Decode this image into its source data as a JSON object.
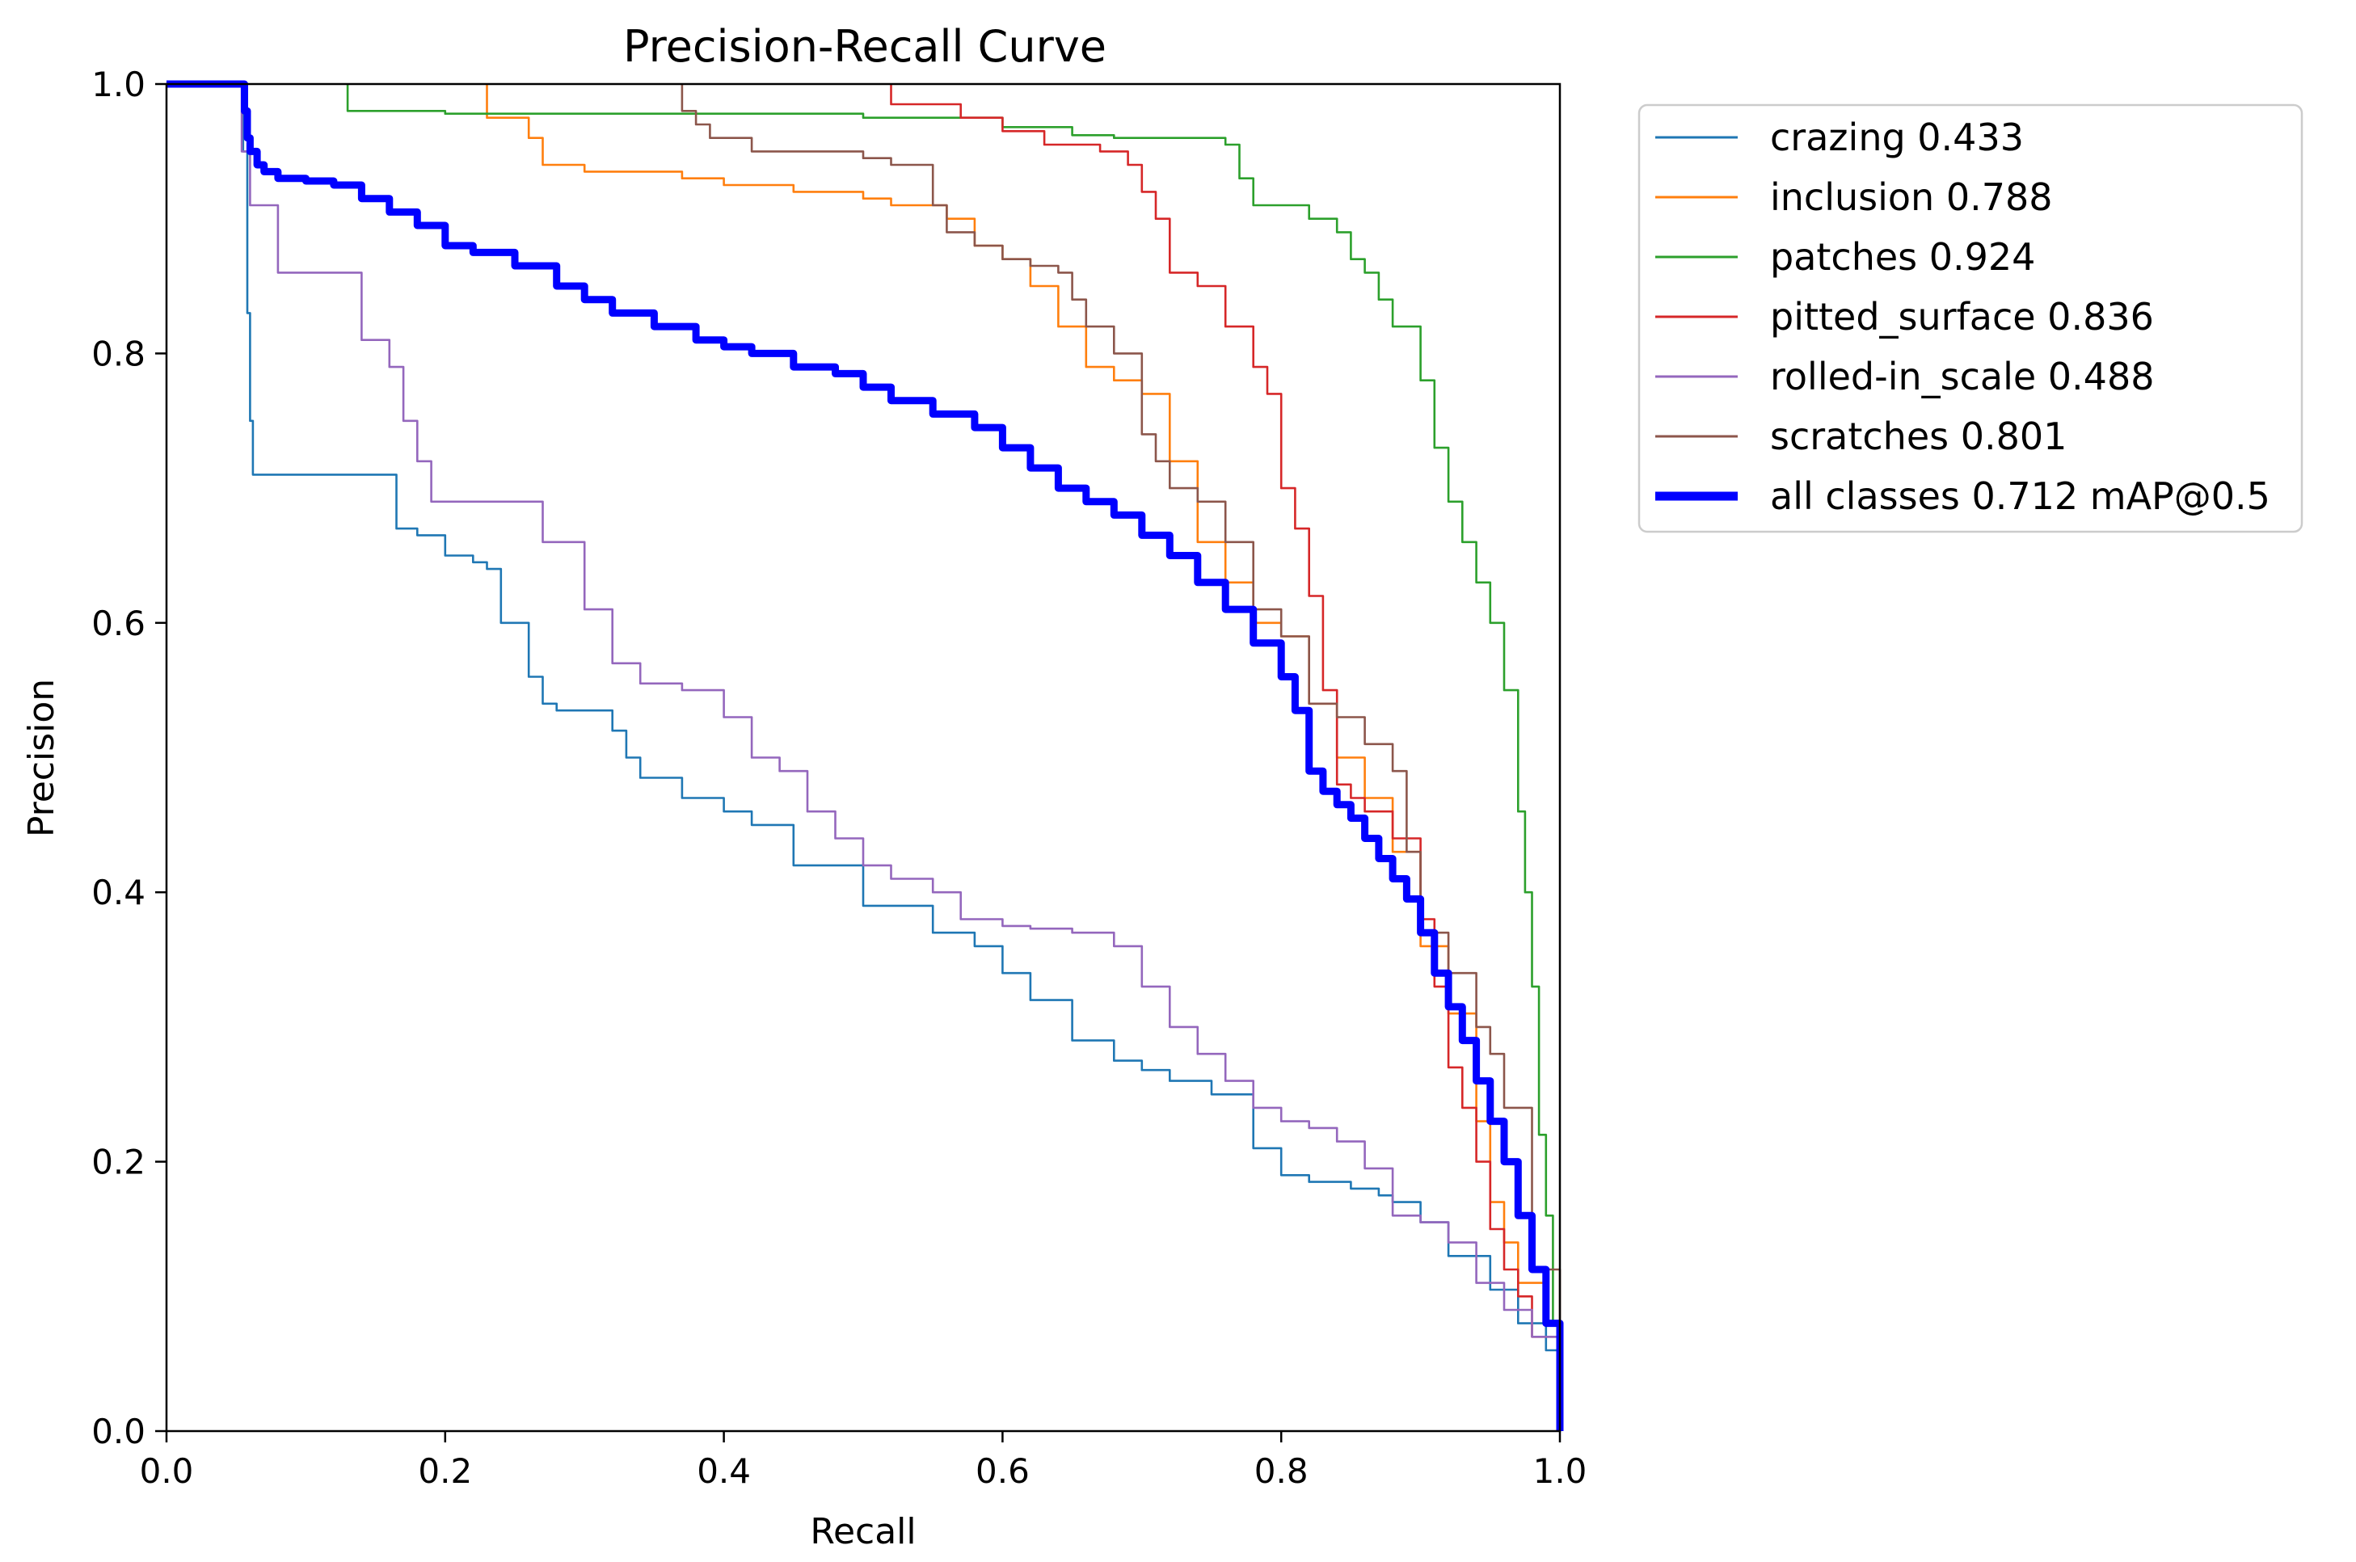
{
  "chart_data": {
    "type": "line",
    "title": "Precision-Recall Curve",
    "xlabel": "Recall",
    "ylabel": "Precision",
    "xlim": [
      0,
      1
    ],
    "ylim": [
      0,
      1
    ],
    "xticks": [
      "0.0",
      "0.2",
      "0.4",
      "0.6",
      "0.8",
      "1.0"
    ],
    "yticks": [
      "0.0",
      "0.2",
      "0.4",
      "0.6",
      "0.8",
      "1.0"
    ],
    "grid": false,
    "legend_position": "outside-top-right",
    "series": [
      {
        "name": "crazing 0.433",
        "color": "#1f77b4",
        "width": "thin",
        "x": [
          0,
          0.054,
          0.055,
          0.058,
          0.06,
          0.062,
          0.065,
          0.09,
          0.1,
          0.13,
          0.16,
          0.165,
          0.18,
          0.2,
          0.22,
          0.23,
          0.24,
          0.26,
          0.27,
          0.28,
          0.3,
          0.32,
          0.33,
          0.34,
          0.35,
          0.37,
          0.4,
          0.42,
          0.45,
          0.48,
          0.5,
          0.52,
          0.55,
          0.58,
          0.6,
          0.62,
          0.65,
          0.68,
          0.7,
          0.72,
          0.75,
          0.78,
          0.8,
          0.82,
          0.85,
          0.87,
          0.88,
          0.9,
          0.92,
          0.95,
          0.97,
          0.99,
          1.0
        ],
        "y": [
          1.0,
          1.0,
          0.95,
          0.83,
          0.75,
          0.71,
          0.71,
          0.71,
          0.71,
          0.71,
          0.71,
          0.67,
          0.665,
          0.65,
          0.645,
          0.64,
          0.6,
          0.56,
          0.54,
          0.535,
          0.535,
          0.52,
          0.5,
          0.485,
          0.485,
          0.47,
          0.46,
          0.45,
          0.42,
          0.42,
          0.39,
          0.39,
          0.37,
          0.36,
          0.34,
          0.32,
          0.29,
          0.275,
          0.268,
          0.26,
          0.25,
          0.21,
          0.19,
          0.185,
          0.18,
          0.175,
          0.17,
          0.155,
          0.13,
          0.105,
          0.08,
          0.06,
          0.0
        ]
      },
      {
        "name": "inclusion 0.788",
        "color": "#ff7f0e",
        "width": "thin",
        "x": [
          0.23,
          0.23,
          0.26,
          0.27,
          0.3,
          0.37,
          0.4,
          0.45,
          0.5,
          0.52,
          0.56,
          0.58,
          0.6,
          0.62,
          0.64,
          0.66,
          0.68,
          0.7,
          0.72,
          0.74,
          0.76,
          0.78,
          0.8,
          0.82,
          0.84,
          0.86,
          0.88,
          0.9,
          0.92,
          0.94,
          0.95,
          0.96,
          0.97,
          0.99,
          1.0
        ],
        "y": [
          1.0,
          0.975,
          0.96,
          0.94,
          0.935,
          0.93,
          0.925,
          0.92,
          0.915,
          0.91,
          0.9,
          0.88,
          0.87,
          0.85,
          0.82,
          0.79,
          0.78,
          0.77,
          0.72,
          0.66,
          0.63,
          0.6,
          0.59,
          0.54,
          0.5,
          0.47,
          0.43,
          0.36,
          0.31,
          0.23,
          0.17,
          0.14,
          0.11,
          0.08,
          0.0
        ]
      },
      {
        "name": "patches 0.924",
        "color": "#2ca02c",
        "width": "thin",
        "x": [
          0.13,
          0.13,
          0.2,
          0.3,
          0.4,
          0.5,
          0.55,
          0.6,
          0.65,
          0.68,
          0.7,
          0.73,
          0.76,
          0.77,
          0.78,
          0.8,
          0.82,
          0.84,
          0.85,
          0.86,
          0.87,
          0.88,
          0.9,
          0.91,
          0.92,
          0.93,
          0.94,
          0.95,
          0.96,
          0.97,
          0.975,
          0.98,
          0.985,
          0.99,
          0.995,
          1.0
        ],
        "y": [
          1.0,
          0.98,
          0.978,
          0.978,
          0.978,
          0.975,
          0.975,
          0.968,
          0.962,
          0.96,
          0.96,
          0.96,
          0.955,
          0.93,
          0.91,
          0.91,
          0.9,
          0.89,
          0.87,
          0.86,
          0.84,
          0.82,
          0.78,
          0.73,
          0.69,
          0.66,
          0.63,
          0.6,
          0.55,
          0.46,
          0.4,
          0.33,
          0.22,
          0.16,
          0.08,
          0.0
        ]
      },
      {
        "name": "pitted_surface 0.836",
        "color": "#d62728",
        "width": "thin",
        "x": [
          0.52,
          0.52,
          0.56,
          0.57,
          0.6,
          0.63,
          0.65,
          0.67,
          0.69,
          0.7,
          0.71,
          0.72,
          0.74,
          0.76,
          0.78,
          0.79,
          0.8,
          0.81,
          0.82,
          0.83,
          0.84,
          0.85,
          0.86,
          0.88,
          0.9,
          0.91,
          0.92,
          0.93,
          0.94,
          0.95,
          0.96,
          0.97,
          0.98,
          1.0
        ],
        "y": [
          1.0,
          0.985,
          0.985,
          0.975,
          0.965,
          0.955,
          0.955,
          0.95,
          0.94,
          0.92,
          0.9,
          0.86,
          0.85,
          0.82,
          0.79,
          0.77,
          0.7,
          0.67,
          0.62,
          0.55,
          0.48,
          0.47,
          0.46,
          0.44,
          0.38,
          0.33,
          0.27,
          0.24,
          0.2,
          0.15,
          0.12,
          0.1,
          0.07,
          0.0
        ]
      },
      {
        "name": "rolled-in_scale 0.488",
        "color": "#9467bd",
        "width": "thin",
        "x": [
          0.054,
          0.054,
          0.06,
          0.07,
          0.08,
          0.1,
          0.12,
          0.14,
          0.16,
          0.17,
          0.18,
          0.19,
          0.2,
          0.22,
          0.25,
          0.27,
          0.28,
          0.3,
          0.32,
          0.34,
          0.37,
          0.38,
          0.4,
          0.42,
          0.44,
          0.46,
          0.48,
          0.5,
          0.52,
          0.55,
          0.57,
          0.6,
          0.62,
          0.65,
          0.68,
          0.7,
          0.72,
          0.74,
          0.76,
          0.78,
          0.8,
          0.82,
          0.84,
          0.86,
          0.88,
          0.9,
          0.92,
          0.94,
          0.96,
          0.98,
          1.0
        ],
        "y": [
          1.0,
          0.95,
          0.91,
          0.91,
          0.86,
          0.86,
          0.86,
          0.81,
          0.79,
          0.75,
          0.72,
          0.69,
          0.69,
          0.69,
          0.69,
          0.66,
          0.66,
          0.61,
          0.57,
          0.555,
          0.55,
          0.55,
          0.53,
          0.5,
          0.49,
          0.46,
          0.44,
          0.42,
          0.41,
          0.4,
          0.38,
          0.375,
          0.373,
          0.37,
          0.36,
          0.33,
          0.3,
          0.28,
          0.26,
          0.24,
          0.23,
          0.225,
          0.215,
          0.195,
          0.16,
          0.155,
          0.14,
          0.11,
          0.09,
          0.07,
          0.0
        ]
      },
      {
        "name": "scratches 0.801",
        "color": "#8c564b",
        "width": "thin",
        "x": [
          0.37,
          0.37,
          0.38,
          0.39,
          0.4,
          0.42,
          0.44,
          0.48,
          0.5,
          0.52,
          0.55,
          0.56,
          0.58,
          0.6,
          0.62,
          0.64,
          0.65,
          0.66,
          0.68,
          0.7,
          0.71,
          0.72,
          0.74,
          0.76,
          0.78,
          0.8,
          0.82,
          0.84,
          0.86,
          0.88,
          0.89,
          0.9,
          0.92,
          0.94,
          0.95,
          0.96,
          0.98,
          1.0
        ],
        "y": [
          1.0,
          0.98,
          0.97,
          0.96,
          0.96,
          0.95,
          0.95,
          0.95,
          0.945,
          0.94,
          0.91,
          0.89,
          0.88,
          0.87,
          0.865,
          0.86,
          0.84,
          0.82,
          0.8,
          0.74,
          0.72,
          0.7,
          0.69,
          0.66,
          0.61,
          0.59,
          0.54,
          0.53,
          0.51,
          0.49,
          0.43,
          0.37,
          0.34,
          0.3,
          0.28,
          0.24,
          0.12,
          0.0
        ]
      },
      {
        "name": "all classes 0.712 mAP@0.5",
        "color": "#0000ff",
        "width": "thick",
        "x": [
          0,
          0.054,
          0.056,
          0.058,
          0.06,
          0.065,
          0.07,
          0.08,
          0.1,
          0.12,
          0.14,
          0.16,
          0.18,
          0.2,
          0.22,
          0.25,
          0.28,
          0.3,
          0.32,
          0.35,
          0.38,
          0.4,
          0.42,
          0.45,
          0.48,
          0.5,
          0.52,
          0.55,
          0.58,
          0.6,
          0.62,
          0.64,
          0.66,
          0.68,
          0.7,
          0.72,
          0.74,
          0.76,
          0.78,
          0.8,
          0.81,
          0.82,
          0.83,
          0.84,
          0.85,
          0.86,
          0.87,
          0.88,
          0.89,
          0.9,
          0.91,
          0.92,
          0.93,
          0.94,
          0.95,
          0.96,
          0.97,
          0.98,
          0.99,
          1.0
        ],
        "y": [
          1.0,
          1.0,
          0.98,
          0.96,
          0.95,
          0.94,
          0.935,
          0.93,
          0.928,
          0.925,
          0.915,
          0.905,
          0.895,
          0.88,
          0.875,
          0.865,
          0.85,
          0.84,
          0.83,
          0.82,
          0.81,
          0.805,
          0.8,
          0.79,
          0.785,
          0.775,
          0.765,
          0.755,
          0.745,
          0.73,
          0.715,
          0.7,
          0.69,
          0.68,
          0.665,
          0.65,
          0.63,
          0.61,
          0.585,
          0.56,
          0.535,
          0.49,
          0.475,
          0.465,
          0.455,
          0.44,
          0.425,
          0.41,
          0.395,
          0.37,
          0.34,
          0.315,
          0.29,
          0.26,
          0.23,
          0.2,
          0.16,
          0.12,
          0.08,
          0.0
        ]
      }
    ]
  }
}
